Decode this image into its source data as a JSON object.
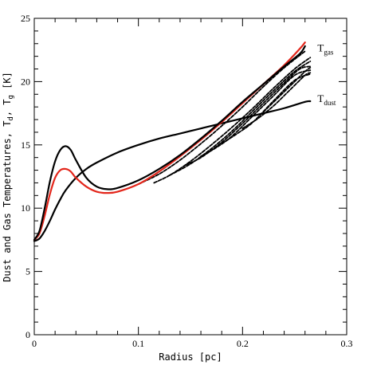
{
  "chart_data": {
    "type": "line",
    "title": "",
    "xlabel": "Radius [pc]",
    "ylabel": "Dust and Gas Temperatures, T",
    "ylabel_sub1": "d",
    "ylabel_mid": ", T",
    "ylabel_sub2": "g",
    "ylabel_tail": " [K]",
    "xlim": [
      0,
      0.3
    ],
    "ylim": [
      0,
      25
    ],
    "xticks": [
      0,
      0.1,
      0.2,
      0.3
    ],
    "xtick_labels": [
      "0",
      "0.1",
      "0.2",
      "0.3"
    ],
    "yticks": [
      0,
      5,
      10,
      15,
      20,
      25
    ],
    "ytick_labels": [
      "0",
      "5",
      "10",
      "15",
      "20",
      "25"
    ],
    "grid": false,
    "annotations": [
      {
        "id": "tgas",
        "main": "T",
        "sub": "gas",
        "x": 0.272,
        "y": 22.4
      },
      {
        "id": "tdust",
        "main": "T",
        "sub": "dust",
        "x": 0.272,
        "y": 18.4
      }
    ],
    "series": [
      {
        "id": "dust",
        "color": "#000000",
        "style": "solid",
        "x": [
          0,
          0.005,
          0.01,
          0.015,
          0.02,
          0.025,
          0.03,
          0.04,
          0.05,
          0.06,
          0.08,
          0.1,
          0.12,
          0.14,
          0.16,
          0.18,
          0.2,
          0.22,
          0.24,
          0.26,
          0.265
        ],
        "y": [
          7.4,
          7.6,
          8.2,
          9.0,
          9.9,
          10.7,
          11.4,
          12.4,
          13.1,
          13.6,
          14.4,
          15.0,
          15.5,
          15.9,
          16.3,
          16.7,
          17.1,
          17.5,
          17.9,
          18.4,
          18.45
        ]
      },
      {
        "id": "gas-outer",
        "color": "#000000",
        "style": "solid",
        "x": [
          0,
          0.005,
          0.01,
          0.015,
          0.02,
          0.025,
          0.03,
          0.035,
          0.04,
          0.05,
          0.06,
          0.07,
          0.08,
          0.1,
          0.12,
          0.14,
          0.16,
          0.18,
          0.2,
          0.22,
          0.24,
          0.255,
          0.26
        ],
        "y": [
          7.5,
          8.2,
          10.0,
          12.1,
          13.7,
          14.6,
          14.9,
          14.6,
          13.8,
          12.4,
          11.7,
          11.5,
          11.6,
          12.2,
          13.1,
          14.2,
          15.5,
          16.9,
          18.4,
          19.8,
          21.2,
          22.2,
          22.8
        ]
      },
      {
        "id": "gas-red",
        "color": "#e3261b",
        "style": "solid",
        "x": [
          0,
          0.005,
          0.01,
          0.015,
          0.02,
          0.025,
          0.03,
          0.035,
          0.04,
          0.05,
          0.06,
          0.07,
          0.08,
          0.1,
          0.12,
          0.14,
          0.16,
          0.18,
          0.2,
          0.22,
          0.24,
          0.255,
          0.26
        ],
        "y": [
          7.5,
          8.0,
          9.4,
          11.1,
          12.4,
          13.0,
          13.1,
          12.9,
          12.4,
          11.7,
          11.3,
          11.2,
          11.3,
          11.9,
          12.9,
          14.1,
          15.4,
          16.8,
          18.3,
          19.8,
          21.3,
          22.6,
          23.1
        ]
      },
      {
        "id": "gas-dash-1",
        "color": "#000000",
        "style": "dashed",
        "x": [
          0.1,
          0.12,
          0.14,
          0.16,
          0.18,
          0.2,
          0.22,
          0.24,
          0.26
        ],
        "y": [
          11.9,
          12.7,
          13.8,
          15.1,
          16.5,
          18.0,
          19.6,
          21.1,
          22.4
        ]
      },
      {
        "id": "gas-dash-2",
        "color": "#000000",
        "style": "dashed",
        "x": [
          0.115,
          0.13,
          0.15,
          0.17,
          0.19,
          0.21,
          0.23,
          0.25,
          0.265
        ],
        "y": [
          12.0,
          12.6,
          13.7,
          15.0,
          16.4,
          17.9,
          19.5,
          21.0,
          21.9
        ]
      },
      {
        "id": "gas-dash-3",
        "color": "#000000",
        "style": "dashed",
        "x": [
          0.13,
          0.15,
          0.17,
          0.19,
          0.21,
          0.23,
          0.25,
          0.265
        ],
        "y": [
          12.6,
          13.5,
          14.7,
          16.1,
          17.7,
          19.3,
          20.8,
          21.6
        ]
      },
      {
        "id": "gas-dash-4",
        "color": "#000000",
        "style": "dashed",
        "x": [
          0.145,
          0.16,
          0.18,
          0.2,
          0.22,
          0.24,
          0.255,
          0.265
        ],
        "y": [
          13.4,
          14.0,
          15.2,
          16.7,
          18.3,
          19.9,
          21.0,
          21.2
        ]
      },
      {
        "id": "gas-dash-5",
        "color": "#000000",
        "style": "dashed",
        "x": [
          0.16,
          0.175,
          0.19,
          0.21,
          0.23,
          0.25,
          0.265
        ],
        "y": [
          14.1,
          14.8,
          15.7,
          17.3,
          18.9,
          20.5,
          20.9
        ]
      },
      {
        "id": "gas-dash-6",
        "color": "#000000",
        "style": "dashed",
        "x": [
          0.18,
          0.195,
          0.21,
          0.23,
          0.25,
          0.265
        ],
        "y": [
          15.1,
          15.9,
          16.8,
          18.5,
          20.1,
          20.6
        ]
      },
      {
        "id": "gas-dash-7",
        "color": "#000000",
        "style": "dashed",
        "x": [
          0.2,
          0.215,
          0.23,
          0.245,
          0.26,
          0.265
        ],
        "y": [
          16.3,
          17.1,
          18.1,
          19.3,
          20.5,
          20.7
        ]
      },
      {
        "id": "gas-dash-8",
        "color": "#000000",
        "style": "dashed",
        "x": [
          0.22,
          0.235,
          0.25,
          0.26,
          0.265
        ],
        "y": [
          17.6,
          18.8,
          20.0,
          20.8,
          21.1
        ]
      }
    ]
  }
}
